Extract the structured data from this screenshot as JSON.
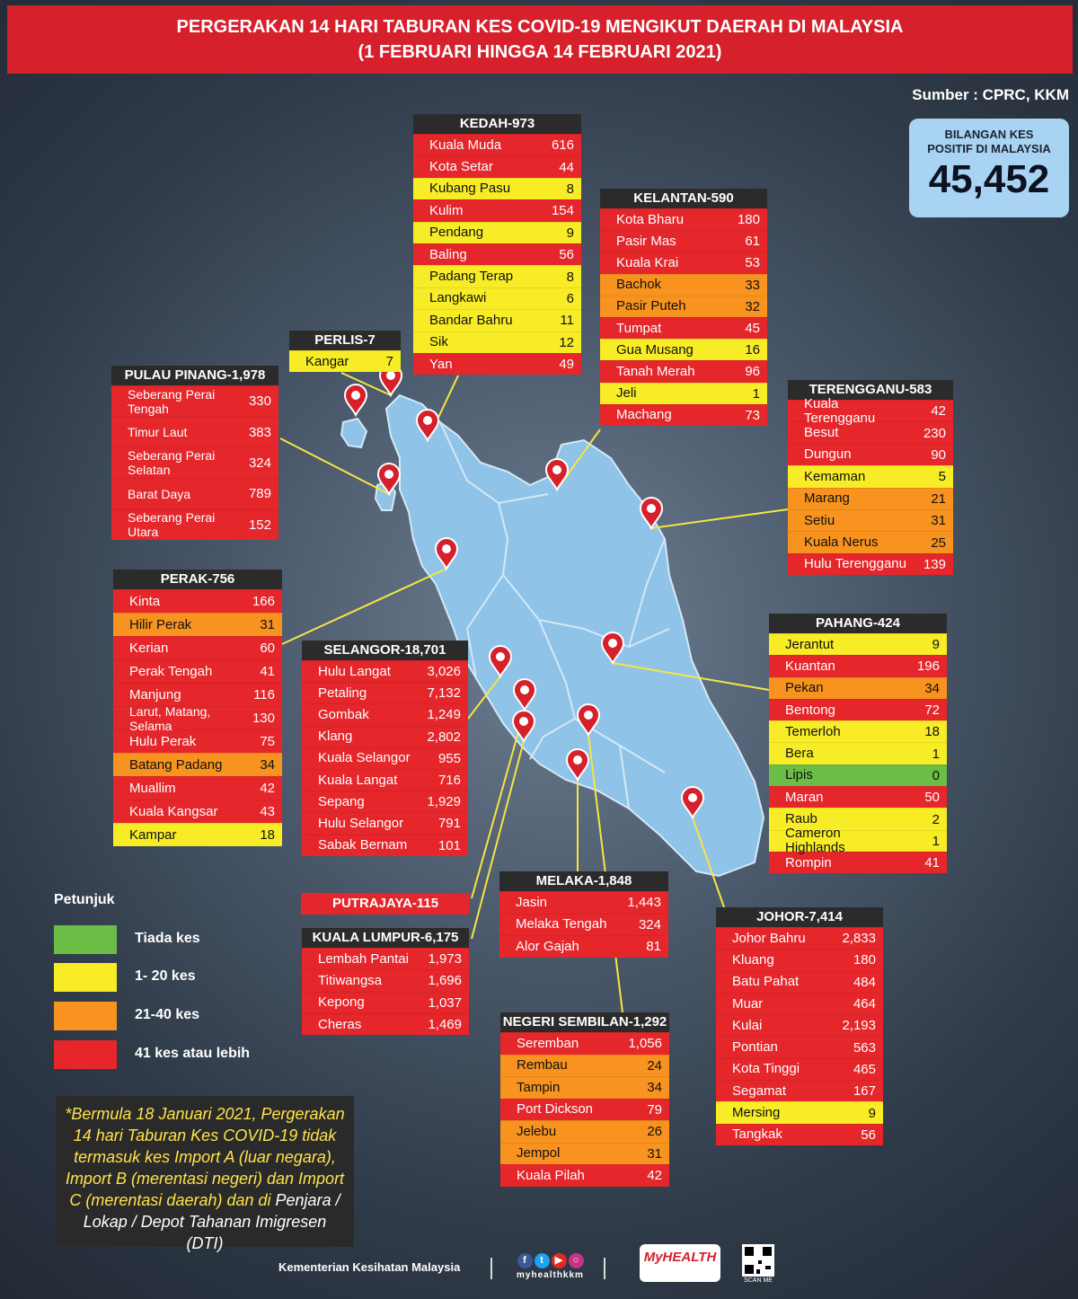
{
  "header": {
    "line1": "PERGERAKAN 14 HARI TABURAN KES COVID-19 MENGIKUT DAERAH DI MALAYSIA",
    "line2": "(1 FEBRUARI HINGGA 14 FEBRUARI 2021)"
  },
  "source": "Sumber : CPRC, KKM",
  "total": {
    "label_line1": "BILANGAN KES",
    "label_line2": "POSITIF DI MALAYSIA",
    "value": "45,452"
  },
  "colors": {
    "red": "#e5262b",
    "orange": "#f7931e",
    "yellow": "#f7ec26",
    "green": "#6cbd45",
    "map": "#8fc3e8",
    "pin": "#d6202b",
    "leader": "#f5e642"
  },
  "states": [
    {
      "key": "kedah",
      "title": "KEDAH-973",
      "rows": [
        {
          "name": "Kuala Muda",
          "value": "616",
          "level": "red"
        },
        {
          "name": "Kota Setar",
          "value": "44",
          "level": "red"
        },
        {
          "name": "Kubang Pasu",
          "value": "8",
          "level": "yellow"
        },
        {
          "name": "Kulim",
          "value": "154",
          "level": "red"
        },
        {
          "name": "Pendang",
          "value": "9",
          "level": "yellow"
        },
        {
          "name": "Baling",
          "value": "56",
          "level": "red"
        },
        {
          "name": "Padang Terap",
          "value": "8",
          "level": "yellow"
        },
        {
          "name": "Langkawi",
          "value": "6",
          "level": "yellow"
        },
        {
          "name": "Bandar Bahru",
          "value": "11",
          "level": "yellow"
        },
        {
          "name": "Sik",
          "value": "12",
          "level": "yellow"
        },
        {
          "name": "Yan",
          "value": "49",
          "level": "red"
        }
      ]
    },
    {
      "key": "kelantan",
      "title": "KELANTAN-590",
      "rows": [
        {
          "name": "Kota Bharu",
          "value": "180",
          "level": "red"
        },
        {
          "name": "Pasir Mas",
          "value": "61",
          "level": "red"
        },
        {
          "name": "Kuala Krai",
          "value": "53",
          "level": "red"
        },
        {
          "name": "Bachok",
          "value": "33",
          "level": "orange"
        },
        {
          "name": "Pasir Puteh",
          "value": "32",
          "level": "orange"
        },
        {
          "name": "Tumpat",
          "value": "45",
          "level": "red"
        },
        {
          "name": "Gua Musang",
          "value": "16",
          "level": "yellow"
        },
        {
          "name": "Tanah Merah",
          "value": "96",
          "level": "red"
        },
        {
          "name": "Jeli",
          "value": "1",
          "level": "yellow"
        },
        {
          "name": "Machang",
          "value": "73",
          "level": "red"
        }
      ]
    },
    {
      "key": "perlis",
      "title": "PERLIS-7",
      "rows": [
        {
          "name": "Kangar",
          "value": "7",
          "level": "yellow"
        }
      ]
    },
    {
      "key": "pinang",
      "title": "PULAU PINANG-1,978",
      "rows": [
        {
          "name": "Seberang Perai Tengah",
          "value": "330",
          "level": "red"
        },
        {
          "name": "Timur Laut",
          "value": "383",
          "level": "red"
        },
        {
          "name": "Seberang Perai Selatan",
          "value": "324",
          "level": "red"
        },
        {
          "name": "Barat Daya",
          "value": "789",
          "level": "red"
        },
        {
          "name": "Seberang Perai Utara",
          "value": "152",
          "level": "red"
        }
      ]
    },
    {
      "key": "terengganu",
      "title": "TERENGGANU-583",
      "rows": [
        {
          "name": "Kuala Terengganu",
          "value": "42",
          "level": "red"
        },
        {
          "name": "Besut",
          "value": "230",
          "level": "red"
        },
        {
          "name": "Dungun",
          "value": "90",
          "level": "red"
        },
        {
          "name": "Kemaman",
          "value": "5",
          "level": "yellow"
        },
        {
          "name": "Marang",
          "value": "21",
          "level": "orange"
        },
        {
          "name": "Setiu",
          "value": "31",
          "level": "orange"
        },
        {
          "name": "Kuala Nerus",
          "value": "25",
          "level": "orange"
        },
        {
          "name": "Hulu Terengganu",
          "value": "139",
          "level": "red"
        }
      ]
    },
    {
      "key": "perak",
      "title": "PERAK-756",
      "rows": [
        {
          "name": "Kinta",
          "value": "166",
          "level": "red"
        },
        {
          "name": "Hilir Perak",
          "value": "31",
          "level": "orange"
        },
        {
          "name": "Kerian",
          "value": "60",
          "level": "red"
        },
        {
          "name": "Perak Tengah",
          "value": "41",
          "level": "red"
        },
        {
          "name": "Manjung",
          "value": "116",
          "level": "red"
        },
        {
          "name": "Larut, Matang, Selama",
          "value": "130",
          "level": "red"
        },
        {
          "name": "Hulu Perak",
          "value": "75",
          "level": "red"
        },
        {
          "name": "Batang Padang",
          "value": "34",
          "level": "orange"
        },
        {
          "name": "Muallim",
          "value": "42",
          "level": "red"
        },
        {
          "name": "Kuala Kangsar",
          "value": "43",
          "level": "red"
        },
        {
          "name": "Kampar",
          "value": "18",
          "level": "yellow"
        }
      ]
    },
    {
      "key": "selangor",
      "title": "SELANGOR-18,701",
      "rows": [
        {
          "name": "Hulu Langat",
          "value": "3,026",
          "level": "red"
        },
        {
          "name": "Petaling",
          "value": "7,132",
          "level": "red"
        },
        {
          "name": "Gombak",
          "value": "1,249",
          "level": "red"
        },
        {
          "name": "Klang",
          "value": "2,802",
          "level": "red"
        },
        {
          "name": "Kuala Selangor",
          "value": "955",
          "level": "red"
        },
        {
          "name": "Kuala Langat",
          "value": "716",
          "level": "red"
        },
        {
          "name": "Sepang",
          "value": "1,929",
          "level": "red"
        },
        {
          "name": "Hulu Selangor",
          "value": "791",
          "level": "red"
        },
        {
          "name": "Sabak Bernam",
          "value": "101",
          "level": "red"
        }
      ]
    },
    {
      "key": "pahang",
      "title": "PAHANG-424",
      "rows": [
        {
          "name": "Jerantut",
          "value": "9",
          "level": "yellow"
        },
        {
          "name": "Kuantan",
          "value": "196",
          "level": "red"
        },
        {
          "name": "Pekan",
          "value": "34",
          "level": "orange"
        },
        {
          "name": "Bentong",
          "value": "72",
          "level": "red"
        },
        {
          "name": "Temerloh",
          "value": "18",
          "level": "yellow"
        },
        {
          "name": "Bera",
          "value": "1",
          "level": "yellow"
        },
        {
          "name": "Lipis",
          "value": "0",
          "level": "green"
        },
        {
          "name": "Maran",
          "value": "50",
          "level": "red"
        },
        {
          "name": "Raub",
          "value": "2",
          "level": "yellow"
        },
        {
          "name": "Cameron Highlands",
          "value": "1",
          "level": "yellow"
        },
        {
          "name": "Rompin",
          "value": "41",
          "level": "red"
        }
      ]
    },
    {
      "key": "putrajaya",
      "title": "PUTRAJAYA-115",
      "rows": []
    },
    {
      "key": "melaka",
      "title": "MELAKA-1,848",
      "rows": [
        {
          "name": "Jasin",
          "value": "1,443",
          "level": "red"
        },
        {
          "name": "Melaka Tengah",
          "value": "324",
          "level": "red"
        },
        {
          "name": "Alor Gajah",
          "value": "81",
          "level": "red"
        }
      ]
    },
    {
      "key": "johor",
      "title": "JOHOR-7,414",
      "rows": [
        {
          "name": "Johor Bahru",
          "value": "2,833",
          "level": "red"
        },
        {
          "name": "Kluang",
          "value": "180",
          "level": "red"
        },
        {
          "name": "Batu Pahat",
          "value": "484",
          "level": "red"
        },
        {
          "name": "Muar",
          "value": "464",
          "level": "red"
        },
        {
          "name": "Kulai",
          "value": "2,193",
          "level": "red"
        },
        {
          "name": "Pontian",
          "value": "563",
          "level": "red"
        },
        {
          "name": "Kota Tinggi",
          "value": "465",
          "level": "red"
        },
        {
          "name": "Segamat",
          "value": "167",
          "level": "red"
        },
        {
          "name": "Mersing",
          "value": "9",
          "level": "yellow"
        },
        {
          "name": "Tangkak",
          "value": "56",
          "level": "red"
        }
      ]
    },
    {
      "key": "kl",
      "title": "KUALA LUMPUR-6,175",
      "rows": [
        {
          "name": "Lembah Pantai",
          "value": "1,973",
          "level": "red"
        },
        {
          "name": "Titiwangsa",
          "value": "1,696",
          "level": "red"
        },
        {
          "name": "Kepong",
          "value": "1,037",
          "level": "red"
        },
        {
          "name": "Cheras",
          "value": "1,469",
          "level": "red"
        }
      ]
    },
    {
      "key": "ns",
      "title": "NEGERI SEMBILAN-1,292",
      "rows": [
        {
          "name": "Seremban",
          "value": "1,056",
          "level": "red"
        },
        {
          "name": "Rembau",
          "value": "24",
          "level": "orange"
        },
        {
          "name": "Tampin",
          "value": "34",
          "level": "orange"
        },
        {
          "name": "Port Dickson",
          "value": "79",
          "level": "red"
        },
        {
          "name": "Jelebu",
          "value": "26",
          "level": "orange"
        },
        {
          "name": "Jempol",
          "value": "31",
          "level": "orange"
        },
        {
          "name": "Kuala Pilah",
          "value": "42",
          "level": "red"
        }
      ]
    }
  ],
  "legend": {
    "title": "Petunjuk",
    "items": [
      {
        "label": "Tiada kes",
        "level": "green"
      },
      {
        "label": "1- 20 kes",
        "level": "yellow"
      },
      {
        "label": "21-40 kes",
        "level": "orange"
      },
      {
        "label": "41 kes atau lebih",
        "level": "red"
      }
    ]
  },
  "note": {
    "part1": "*Bermula 18 Januari 2021, Pergerakan 14 hari Taburan Kes COVID-19 tidak termasuk kes Import A (luar negara), Import B (merentasi negeri) dan Import C (merentasi daerah) dan di ",
    "part2": "Penjara / Lokap / Depot Tahanan Imigresen (DTI)"
  },
  "footer": {
    "ministry": "Kementerian Kesihatan Malaysia",
    "social_handle": "myhealthkkm",
    "social_icons": [
      "facebook-icon",
      "twitter-icon",
      "youtube-icon",
      "instagram-icon"
    ],
    "logo_text": "MyHEALTH",
    "qr_label": "SCAN ME"
  }
}
